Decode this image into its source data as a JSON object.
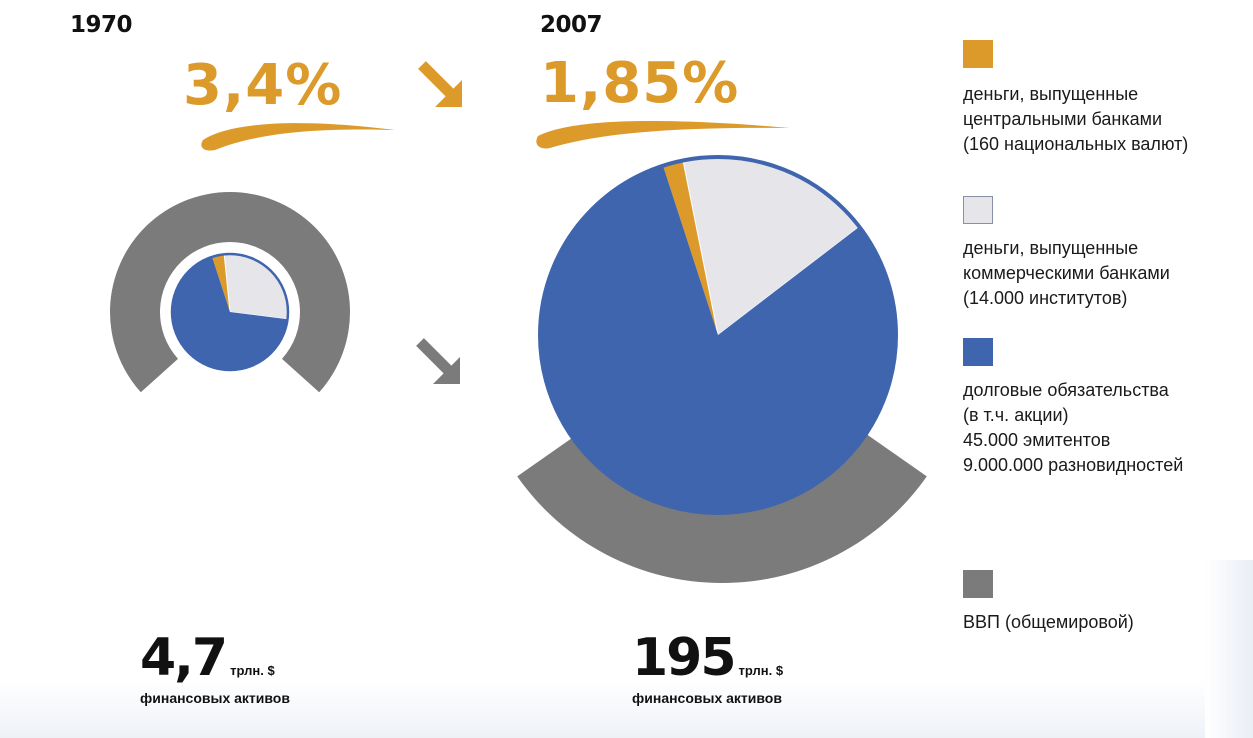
{
  "chart_data": [
    {
      "type": "pie",
      "year": "1970",
      "rate": "3,4%",
      "total_value": "4,7",
      "total_unit": "трлн. $",
      "total_caption": "финансовых активов",
      "slices": [
        {
          "name": "деньги, выпущенные центральными банками",
          "value": 3.4
        },
        {
          "name": "деньги, выпущенные коммерческими банками",
          "value": 28.6
        },
        {
          "name": "долговые обязательства",
          "value": 68.0
        }
      ]
    },
    {
      "type": "pie",
      "year": "2007",
      "rate": "1,85%",
      "total_value": "195",
      "total_unit": "трлн. $",
      "total_caption": "финансовых активов",
      "slices": [
        {
          "name": "деньги, выпущенные центральными банками",
          "value": 1.85
        },
        {
          "name": "деньги, выпущенные коммерческими банками",
          "value": 17.75
        },
        {
          "name": "долговые обязательства",
          "value": 80.4
        }
      ]
    }
  ],
  "colors": {
    "central": "#dc9a2a",
    "commercial": "#e6e6ea",
    "debt": "#3e65ad",
    "gdp": "#7b7b7b",
    "arrow_orange": "#dc9a2a",
    "arrow_gray": "#7b7b7b"
  },
  "legend": [
    {
      "key": "central",
      "lines": [
        "деньги, выпущенные",
        "центральными банками",
        "(160 национальных валют)"
      ]
    },
    {
      "key": "commercial",
      "lines": [
        "деньги, выпущенные",
        "коммерческими банками",
        "(14.000 институтов)"
      ]
    },
    {
      "key": "debt",
      "lines": [
        "долговые обязательства",
        "(в т.ч. акции)",
        "45.000 эмитентов",
        "9.000.000 разновидностей"
      ]
    },
    {
      "key": "gdp",
      "lines": [
        "ВВП (общемировой)"
      ]
    }
  ]
}
